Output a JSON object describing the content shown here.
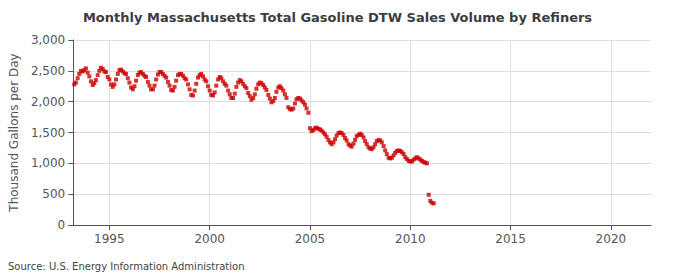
{
  "chart_data": {
    "type": "scatter",
    "title": "Monthly Massachusetts Total Gasoline DTW Sales Volume by Refiners",
    "ylabel": "Thousand Gallons per Day",
    "annotations": [
      "Source: U.S. Energy Information Administration"
    ],
    "color": "#cc0000",
    "marker": "square",
    "grid": true,
    "xlim": [
      1993.2,
      2022.0
    ],
    "xticks": [
      1995,
      2000,
      2005,
      2010,
      2015,
      2020
    ],
    "ylim": [
      0,
      3000
    ],
    "yticks": [
      0,
      500,
      {
        "value": 1000,
        "label": "1,000"
      },
      {
        "value": 1500,
        "label": "1,500"
      },
      {
        "value": 2000,
        "label": "2,000"
      },
      {
        "value": 2500,
        "label": "2,500"
      },
      {
        "value": 3000,
        "label": "3,000"
      }
    ],
    "x": [
      1993.25,
      1993.33,
      1993.42,
      1993.5,
      1993.58,
      1993.67,
      1993.75,
      1993.83,
      1993.92,
      1994.0,
      1994.08,
      1994.17,
      1994.25,
      1994.33,
      1994.42,
      1994.5,
      1994.58,
      1994.67,
      1994.75,
      1994.83,
      1994.92,
      1995.0,
      1995.08,
      1995.17,
      1995.25,
      1995.33,
      1995.42,
      1995.5,
      1995.58,
      1995.67,
      1995.75,
      1995.83,
      1995.92,
      1996.0,
      1996.08,
      1996.17,
      1996.25,
      1996.33,
      1996.42,
      1996.5,
      1996.58,
      1996.67,
      1996.75,
      1996.83,
      1996.92,
      1997.0,
      1997.08,
      1997.17,
      1997.25,
      1997.33,
      1997.42,
      1997.5,
      1997.58,
      1997.67,
      1997.75,
      1997.83,
      1997.92,
      1998.0,
      1998.08,
      1998.17,
      1998.25,
      1998.33,
      1998.42,
      1998.5,
      1998.58,
      1998.67,
      1998.75,
      1998.83,
      1998.92,
      1999.0,
      1999.08,
      1999.17,
      1999.25,
      1999.33,
      1999.42,
      1999.5,
      1999.58,
      1999.67,
      1999.75,
      1999.83,
      1999.92,
      2000.0,
      2000.08,
      2000.17,
      2000.25,
      2000.33,
      2000.42,
      2000.5,
      2000.58,
      2000.67,
      2000.75,
      2000.83,
      2000.92,
      2001.0,
      2001.08,
      2001.17,
      2001.25,
      2001.33,
      2001.42,
      2001.5,
      2001.58,
      2001.67,
      2001.75,
      2001.83,
      2001.92,
      2002.0,
      2002.08,
      2002.17,
      2002.25,
      2002.33,
      2002.42,
      2002.5,
      2002.58,
      2002.67,
      2002.75,
      2002.83,
      2002.92,
      2003.0,
      2003.08,
      2003.17,
      2003.25,
      2003.33,
      2003.42,
      2003.5,
      2003.58,
      2003.67,
      2003.75,
      2003.83,
      2003.92,
      2004.0,
      2004.08,
      2004.17,
      2004.25,
      2004.33,
      2004.42,
      2004.5,
      2004.58,
      2004.67,
      2004.75,
      2004.83,
      2004.92,
      2005.0,
      2005.08,
      2005.17,
      2005.25,
      2005.33,
      2005.42,
      2005.5,
      2005.58,
      2005.67,
      2005.75,
      2005.83,
      2005.92,
      2006.0,
      2006.08,
      2006.17,
      2006.25,
      2006.33,
      2006.42,
      2006.5,
      2006.58,
      2006.67,
      2006.75,
      2006.83,
      2006.92,
      2007.0,
      2007.08,
      2007.17,
      2007.25,
      2007.33,
      2007.42,
      2007.5,
      2007.58,
      2007.67,
      2007.75,
      2007.83,
      2007.92,
      2008.0,
      2008.08,
      2008.17,
      2008.25,
      2008.33,
      2008.42,
      2008.5,
      2008.58,
      2008.67,
      2008.75,
      2008.83,
      2008.92,
      2009.0,
      2009.08,
      2009.17,
      2009.25,
      2009.33,
      2009.42,
      2009.5,
      2009.58,
      2009.67,
      2009.75,
      2009.83,
      2009.92,
      2010.0,
      2010.08,
      2010.17,
      2010.25,
      2010.33,
      2010.42,
      2010.5,
      2010.58,
      2010.67,
      2010.75,
      2010.83,
      2010.92,
      2011.0,
      2011.08,
      2011.17
    ],
    "values": [
      2280,
      2310,
      2380,
      2450,
      2500,
      2490,
      2510,
      2540,
      2470,
      2410,
      2330,
      2270,
      2300,
      2350,
      2430,
      2500,
      2550,
      2530,
      2490,
      2480,
      2400,
      2360,
      2280,
      2240,
      2280,
      2360,
      2450,
      2510,
      2520,
      2490,
      2460,
      2450,
      2380,
      2310,
      2230,
      2200,
      2250,
      2340,
      2430,
      2470,
      2480,
      2450,
      2420,
      2400,
      2320,
      2260,
      2200,
      2200,
      2260,
      2360,
      2440,
      2480,
      2480,
      2450,
      2420,
      2390,
      2320,
      2260,
      2190,
      2180,
      2240,
      2340,
      2430,
      2450,
      2450,
      2420,
      2380,
      2360,
      2280,
      2200,
      2110,
      2100,
      2180,
      2290,
      2390,
      2430,
      2450,
      2410,
      2360,
      2330,
      2250,
      2180,
      2110,
      2100,
      2150,
      2260,
      2360,
      2400,
      2380,
      2330,
      2290,
      2260,
      2180,
      2120,
      2060,
      2060,
      2130,
      2240,
      2310,
      2350,
      2330,
      2290,
      2250,
      2220,
      2140,
      2090,
      2030,
      2060,
      2120,
      2210,
      2280,
      2310,
      2300,
      2270,
      2230,
      2190,
      2110,
      2050,
      1990,
      2010,
      2060,
      2160,
      2230,
      2250,
      2220,
      2180,
      2120,
      2060,
      1910,
      1880,
      1870,
      1890,
      1970,
      2040,
      2060,
      2050,
      2020,
      1990,
      1950,
      1890,
      1820,
      1570,
      1520,
      1540,
      1570,
      1580,
      1560,
      1550,
      1530,
      1500,
      1470,
      1430,
      1380,
      1340,
      1310,
      1340,
      1390,
      1450,
      1490,
      1500,
      1490,
      1460,
      1410,
      1370,
      1310,
      1290,
      1270,
      1320,
      1380,
      1440,
      1460,
      1480,
      1460,
      1420,
      1360,
      1310,
      1260,
      1240,
      1230,
      1260,
      1310,
      1360,
      1380,
      1370,
      1340,
      1280,
      1210,
      1150,
      1090,
      1080,
      1090,
      1130,
      1170,
      1200,
      1210,
      1200,
      1180,
      1150,
      1100,
      1070,
      1040,
      1030,
      1030,
      1060,
      1080,
      1100,
      1080,
      1060,
      1040,
      1020,
      1010,
      1000,
      490,
      390,
      360,
      350
    ]
  }
}
